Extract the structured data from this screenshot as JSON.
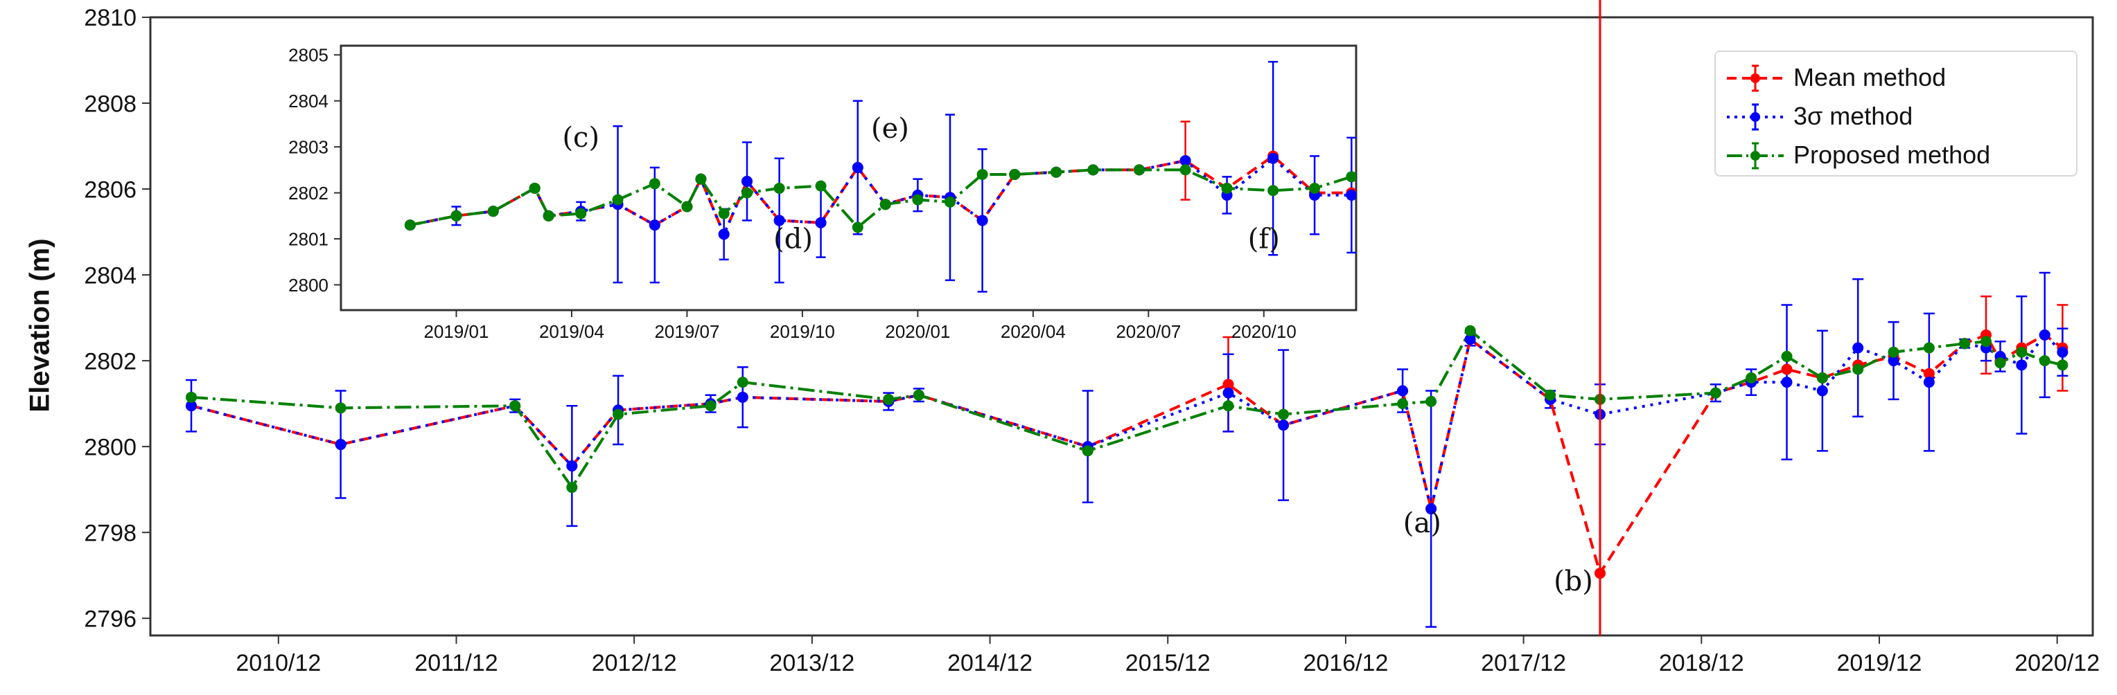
{
  "chart_data": {
    "type": "line",
    "subtype": "errorbar time series with inset",
    "title": "",
    "ylabel": "Elevation (m)",
    "xlabel": "",
    "colors": {
      "mean": "#ff0000",
      "sigma": "#0000ff",
      "proposed": "#008000",
      "marker_line": "#ff0000"
    },
    "legend": {
      "position": "upper right",
      "entries": [
        {
          "key": "mean",
          "label": "Mean method",
          "linestyle": "dashed",
          "color": "#ff0000"
        },
        {
          "key": "sigma",
          "label": "3σ method",
          "linestyle": "dotted",
          "color": "#0000ff"
        },
        {
          "key": "proposed",
          "label": "Proposed method",
          "linestyle": "dashdot",
          "color": "#008000"
        }
      ]
    },
    "main": {
      "ylim": [
        2795.6,
        2810
      ],
      "yticks": [
        2796,
        2798,
        2800,
        2802,
        2804,
        2806,
        2808,
        2810
      ],
      "xlim": [
        2010.2,
        2021.12
      ],
      "xticks": [
        {
          "label": "2010/12",
          "x": 2010.92
        },
        {
          "label": "2011/12",
          "x": 2011.92
        },
        {
          "label": "2012/12",
          "x": 2012.92
        },
        {
          "label": "2013/12",
          "x": 2013.92
        },
        {
          "label": "2014/12",
          "x": 2014.92
        },
        {
          "label": "2015/12",
          "x": 2015.92
        },
        {
          "label": "2016/12",
          "x": 2016.92
        },
        {
          "label": "2017/12",
          "x": 2017.92
        },
        {
          "label": "2018/12",
          "x": 2018.92
        },
        {
          "label": "2019/12",
          "x": 2019.92
        },
        {
          "label": "2020/12",
          "x": 2020.92
        }
      ],
      "vline": {
        "x": 2018.35,
        "color": "#ff0000"
      },
      "annotations": [
        {
          "text": "(a)",
          "x": 2017.35,
          "y": 2798.0
        },
        {
          "text": "(b)",
          "x": 2018.2,
          "y": 2796.65
        }
      ],
      "series": {
        "mean": [
          [
            2010.43,
            2800.95
          ],
          [
            2011.27,
            2800.05
          ],
          [
            2012.25,
            2800.95
          ],
          [
            2012.57,
            2799.55
          ],
          [
            2012.83,
            2800.85
          ],
          [
            2013.35,
            2801.0
          ],
          [
            2013.53,
            2801.15
          ],
          [
            2014.35,
            2801.05
          ],
          [
            2014.52,
            2801.2
          ],
          [
            2015.47,
            2800.0
          ],
          [
            2016.26,
            2801.45
          ],
          [
            2016.57,
            2800.5
          ],
          [
            2017.24,
            2801.3
          ],
          [
            2017.4,
            2798.55
          ],
          [
            2017.62,
            2802.5
          ],
          [
            2018.07,
            2801.1
          ],
          [
            2018.35,
            2797.05
          ],
          [
            2019.0,
            2801.25
          ],
          [
            2019.2,
            2801.5
          ],
          [
            2019.4,
            2801.8
          ],
          [
            2019.6,
            2801.6
          ],
          [
            2019.8,
            2801.9
          ],
          [
            2020.0,
            2802.1
          ],
          [
            2020.2,
            2801.7
          ],
          [
            2020.4,
            2802.4
          ],
          [
            2020.52,
            2802.6
          ],
          [
            2020.6,
            2802.0
          ],
          [
            2020.72,
            2802.3
          ],
          [
            2020.85,
            2802.6
          ],
          [
            2020.95,
            2802.3
          ]
        ],
        "sigma": [
          [
            2010.43,
            2800.95,
            0.6
          ],
          [
            2011.27,
            2800.05,
            1.25
          ],
          [
            2012.25,
            2800.95,
            0.15
          ],
          [
            2012.57,
            2799.55,
            1.4
          ],
          [
            2012.83,
            2800.85,
            0.8
          ],
          [
            2013.35,
            2801.0,
            0.2
          ],
          [
            2013.53,
            2801.15,
            0.7
          ],
          [
            2014.35,
            2801.05,
            0.2
          ],
          [
            2014.52,
            2801.2,
            0.15
          ],
          [
            2015.47,
            2800.0,
            1.3
          ],
          [
            2016.26,
            2801.25,
            0.9
          ],
          [
            2016.57,
            2800.5,
            1.75
          ],
          [
            2017.24,
            2801.3,
            0.5
          ],
          [
            2017.4,
            2798.55,
            2.75
          ],
          [
            2017.62,
            2802.5,
            0.15
          ],
          [
            2018.07,
            2801.1,
            0.2
          ],
          [
            2018.35,
            2800.75,
            0.7
          ],
          [
            2019.0,
            2801.25,
            0.2
          ],
          [
            2019.2,
            2801.5,
            0.3
          ],
          [
            2019.4,
            2801.5,
            1.8
          ],
          [
            2019.6,
            2801.3,
            1.4
          ],
          [
            2019.8,
            2802.3,
            1.6
          ],
          [
            2020.0,
            2802.0,
            0.9
          ],
          [
            2020.2,
            2801.5,
            1.6
          ],
          [
            2020.4,
            2802.4,
            0.1
          ],
          [
            2020.52,
            2802.3,
            0.3
          ],
          [
            2020.6,
            2802.1,
            0.35
          ],
          [
            2020.72,
            2801.9,
            1.6
          ],
          [
            2020.85,
            2802.6,
            1.45
          ],
          [
            2020.95,
            2802.2,
            0.55
          ]
        ],
        "proposed": [
          [
            2010.43,
            2801.15
          ],
          [
            2011.27,
            2800.9
          ],
          [
            2012.25,
            2800.95
          ],
          [
            2012.57,
            2799.05
          ],
          [
            2012.83,
            2800.75
          ],
          [
            2013.35,
            2800.95
          ],
          [
            2013.53,
            2801.5
          ],
          [
            2014.35,
            2801.1
          ],
          [
            2014.52,
            2801.2
          ],
          [
            2015.47,
            2799.9
          ],
          [
            2016.26,
            2800.95
          ],
          [
            2016.57,
            2800.75
          ],
          [
            2017.24,
            2801.0
          ],
          [
            2017.4,
            2801.05
          ],
          [
            2017.62,
            2802.7
          ],
          [
            2018.07,
            2801.2
          ],
          [
            2018.35,
            2801.1
          ],
          [
            2019.0,
            2801.25
          ],
          [
            2019.2,
            2801.6
          ],
          [
            2019.4,
            2802.1
          ],
          [
            2019.6,
            2801.6
          ],
          [
            2019.8,
            2801.8
          ],
          [
            2020.0,
            2802.2
          ],
          [
            2020.2,
            2802.3
          ],
          [
            2020.4,
            2802.4
          ],
          [
            2020.52,
            2802.45
          ],
          [
            2020.6,
            2801.95
          ],
          [
            2020.72,
            2802.2
          ],
          [
            2020.85,
            2802.0
          ],
          [
            2020.95,
            2801.9
          ]
        ]
      },
      "mean_errorbars": [
        {
          "x": 2016.26,
          "y": 2801.45,
          "err": 1.1
        },
        {
          "x": 2020.52,
          "y": 2802.6,
          "err": 0.9
        },
        {
          "x": 2020.95,
          "y": 2802.3,
          "err": 1.0
        }
      ]
    },
    "inset": {
      "ylim": [
        2799.45,
        2805.2
      ],
      "yticks": [
        2800,
        2801,
        2802,
        2803,
        2804,
        2805
      ],
      "xlim": [
        2018.75,
        2020.95
      ],
      "xticks": [
        {
          "label": "2019/01",
          "x": 2019.0
        },
        {
          "label": "2019/04",
          "x": 2019.25
        },
        {
          "label": "2019/07",
          "x": 2019.5
        },
        {
          "label": "2019/10",
          "x": 2019.75
        },
        {
          "label": "2020/01",
          "x": 2020.0
        },
        {
          "label": "2020/04",
          "x": 2020.25
        },
        {
          "label": "2020/07",
          "x": 2020.5
        },
        {
          "label": "2020/10",
          "x": 2020.75
        }
      ],
      "annotations": [
        {
          "text": "(c)",
          "x": 2019.27,
          "y": 2803.0
        },
        {
          "text": "(d)",
          "x": 2019.73,
          "y": 2800.8
        },
        {
          "text": "(e)",
          "x": 2019.94,
          "y": 2803.2
        },
        {
          "text": "(f)",
          "x": 2020.75,
          "y": 2800.8
        }
      ],
      "series": {
        "mean": [
          [
            2018.9,
            2801.3
          ],
          [
            2019.0,
            2801.5
          ],
          [
            2019.08,
            2801.6
          ],
          [
            2019.17,
            2802.1
          ],
          [
            2019.2,
            2801.5
          ],
          [
            2019.27,
            2801.6
          ],
          [
            2019.35,
            2801.75
          ],
          [
            2019.43,
            2801.3
          ],
          [
            2019.5,
            2801.7
          ],
          [
            2019.53,
            2802.3
          ],
          [
            2019.58,
            2801.1
          ],
          [
            2019.63,
            2802.25
          ],
          [
            2019.7,
            2801.4
          ],
          [
            2019.79,
            2801.35
          ],
          [
            2019.87,
            2802.55
          ],
          [
            2019.93,
            2801.75
          ],
          [
            2020.0,
            2801.95
          ],
          [
            2020.07,
            2801.9
          ],
          [
            2020.14,
            2801.4
          ],
          [
            2020.21,
            2802.4
          ],
          [
            2020.3,
            2802.45
          ],
          [
            2020.38,
            2802.5
          ],
          [
            2020.48,
            2802.5
          ],
          [
            2020.58,
            2802.7
          ],
          [
            2020.67,
            2802.1
          ],
          [
            2020.77,
            2802.8
          ],
          [
            2020.86,
            2802.0
          ],
          [
            2020.94,
            2802.0
          ],
          [
            2021.02,
            2802.3
          ],
          [
            2021.1,
            2802.2
          ],
          [
            2021.18,
            2802.2
          ],
          [
            2021.27,
            2802.8
          ],
          [
            2021.36,
            2802.4
          ]
        ],
        "sigma": [
          [
            2018.9,
            2801.3,
            0.05
          ],
          [
            2019.0,
            2801.5,
            0.2
          ],
          [
            2019.08,
            2801.6,
            0.05
          ],
          [
            2019.17,
            2802.1,
            0.05
          ],
          [
            2019.2,
            2801.5,
            0.05
          ],
          [
            2019.27,
            2801.6,
            0.2
          ],
          [
            2019.35,
            2801.75,
            1.7
          ],
          [
            2019.43,
            2801.3,
            1.25
          ],
          [
            2019.5,
            2801.7,
            0.05
          ],
          [
            2019.53,
            2802.3,
            0.05
          ],
          [
            2019.58,
            2801.1,
            0.55
          ],
          [
            2019.63,
            2802.25,
            0.85
          ],
          [
            2019.7,
            2801.4,
            1.35
          ],
          [
            2019.79,
            2801.35,
            0.75
          ],
          [
            2019.87,
            2802.55,
            1.45
          ],
          [
            2019.93,
            2801.75,
            0.05
          ],
          [
            2020.0,
            2801.95,
            0.35
          ],
          [
            2020.07,
            2801.9,
            1.8
          ],
          [
            2020.14,
            2801.4,
            1.55
          ],
          [
            2020.21,
            2802.4,
            0.05
          ],
          [
            2020.3,
            2802.45,
            0.05
          ],
          [
            2020.38,
            2802.5,
            0.05
          ],
          [
            2020.48,
            2802.5,
            0.05
          ],
          [
            2020.58,
            2802.7,
            0.05
          ],
          [
            2020.67,
            2801.95,
            0.4
          ],
          [
            2020.77,
            2802.75,
            2.1
          ],
          [
            2020.86,
            2801.95,
            0.85
          ],
          [
            2020.94,
            2801.95,
            1.25
          ],
          [
            2021.02,
            2802.25,
            0.45
          ],
          [
            2021.1,
            2802.2,
            0.25
          ],
          [
            2021.18,
            2802.15,
            0.4
          ],
          [
            2021.27,
            2802.8,
            1.25
          ],
          [
            2021.36,
            2802.2,
            0.6
          ]
        ],
        "proposed": [
          [
            2018.9,
            2801.3
          ],
          [
            2019.0,
            2801.5
          ],
          [
            2019.08,
            2801.6
          ],
          [
            2019.17,
            2802.1
          ],
          [
            2019.2,
            2801.5
          ],
          [
            2019.27,
            2801.55
          ],
          [
            2019.35,
            2801.85
          ],
          [
            2019.43,
            2802.2
          ],
          [
            2019.5,
            2801.7
          ],
          [
            2019.53,
            2802.3
          ],
          [
            2019.58,
            2801.55
          ],
          [
            2019.63,
            2802.0
          ],
          [
            2019.7,
            2802.1
          ],
          [
            2019.79,
            2802.15
          ],
          [
            2019.87,
            2801.25
          ],
          [
            2019.93,
            2801.75
          ],
          [
            2020.0,
            2801.85
          ],
          [
            2020.07,
            2801.8
          ],
          [
            2020.14,
            2802.4
          ],
          [
            2020.21,
            2802.4
          ],
          [
            2020.3,
            2802.45
          ],
          [
            2020.38,
            2802.5
          ],
          [
            2020.48,
            2802.5
          ],
          [
            2020.58,
            2802.5
          ],
          [
            2020.67,
            2802.1
          ],
          [
            2020.77,
            2802.05
          ],
          [
            2020.86,
            2802.1
          ],
          [
            2020.94,
            2802.35
          ],
          [
            2021.02,
            2802.75
          ],
          [
            2021.1,
            2802.45
          ],
          [
            2021.18,
            2802.1
          ],
          [
            2021.27,
            2801.85
          ],
          [
            2021.36,
            2801.9
          ]
        ]
      },
      "mean_errorbars": [
        {
          "x": 2020.58,
          "y": 2802.7,
          "err": 0.85
        },
        {
          "x": 2021.36,
          "y": 2802.4,
          "err": 0.95
        }
      ]
    }
  }
}
